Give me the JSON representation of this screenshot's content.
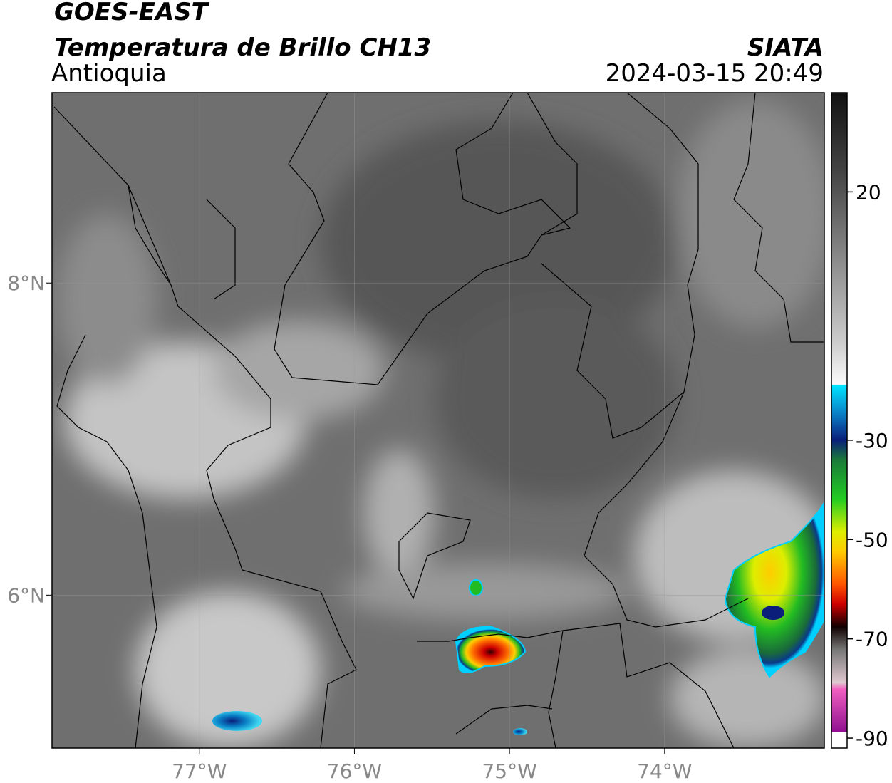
{
  "header": {
    "title": "GOES-EAST",
    "subtitle": "Temperatura de Brillo CH13",
    "region": "Antioquia",
    "source": "SIATA",
    "datetime": "2024-03-15 20:49"
  },
  "map": {
    "xlim": [
      -77.95,
      -72.97
    ],
    "ylim": [
      5.02,
      9.22
    ],
    "xticks": [
      {
        "value": -77,
        "label": "77°W"
      },
      {
        "value": -76,
        "label": "76°W"
      },
      {
        "value": -75,
        "label": "75°W"
      },
      {
        "value": -74,
        "label": "74°W"
      }
    ],
    "yticks": [
      {
        "value": 8,
        "label": "8°N"
      },
      {
        "value": 6,
        "label": "6°N"
      }
    ],
    "grid": true
  },
  "colorbar": {
    "lim": [
      -92,
      40
    ],
    "ticks": [
      20,
      -30,
      -50,
      -70,
      -90
    ]
  }
}
